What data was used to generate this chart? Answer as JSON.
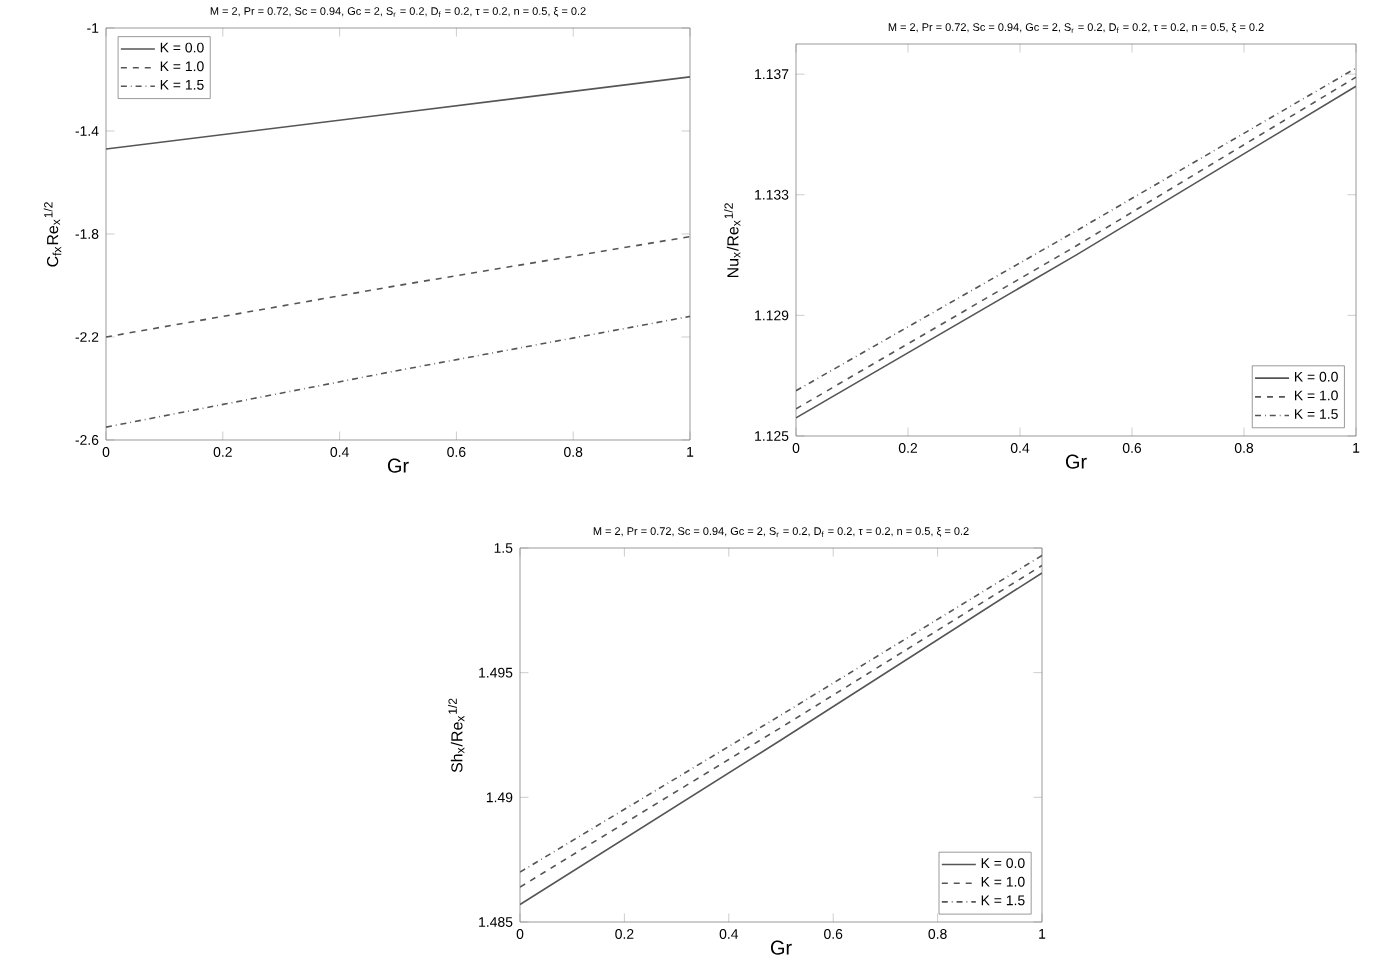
{
  "chart_data": [
    {
      "type": "line",
      "title": "M = 2, Pr = 0.72, Sc = 0.94, Gc = 2, S$_{r}$ = 0.2, D$_{f}$ = 0.2, τ = 0.2, n = 0.5, ξ = 0.2",
      "xlabel": "Gr",
      "ylabel": "C$_{fx}$Re$_{x}$$^{1/2}$",
      "x": [
        0,
        0.5,
        1
      ],
      "xlim": [
        0,
        1
      ],
      "ylim": [
        -2.6,
        -1
      ],
      "xticks": [
        0,
        0.2,
        0.4,
        0.6,
        0.8,
        1
      ],
      "yticks": [
        -2.6,
        -2.2,
        -1.8,
        -1.4,
        -1
      ],
      "legend": "top left",
      "series": [
        {
          "name": "K = 0.0",
          "color": "#555555",
          "line_style": "solid",
          "values": [
            -1.47,
            -1.33,
            -1.19
          ]
        },
        {
          "name": "K = 1.0",
          "color": "#555555",
          "line_style": "dashed",
          "values": [
            -2.2,
            -2.0,
            -1.81
          ]
        },
        {
          "name": "K = 1.5",
          "color": "#555555",
          "line_style": "dashdot",
          "values": [
            -2.55,
            -2.33,
            -2.12
          ]
        }
      ]
    },
    {
      "type": "line",
      "title": "M = 2, Pr = 0.72, Sc = 0.94, Gc = 2, S$_{r}$ = 0.2, D$_{f}$ = 0.2, τ = 0.2, n = 0.5, ξ = 0.2",
      "xlabel": "Gr",
      "ylabel": "Nu$_{x}$/Re$_{x}$$^{1/2}$",
      "x": [
        0,
        0.5,
        1
      ],
      "xlim": [
        0,
        1
      ],
      "ylim": [
        1.125,
        1.138
      ],
      "xticks": [
        0,
        0.2,
        0.4,
        0.6,
        0.8,
        1
      ],
      "yticks": [
        1.125,
        1.129,
        1.133,
        1.137
      ],
      "legend": "bottom right",
      "series": [
        {
          "name": "K = 0.0",
          "color": "#555555",
          "line_style": "solid",
          "values": [
            1.1256,
            1.131,
            1.1366
          ]
        },
        {
          "name": "K = 1.0",
          "color": "#555555",
          "line_style": "dashed",
          "values": [
            1.1259,
            1.1313,
            1.1369
          ]
        },
        {
          "name": "K = 1.5",
          "color": "#555555",
          "line_style": "dashdot",
          "values": [
            1.1265,
            1.1318,
            1.1372
          ]
        }
      ]
    },
    {
      "type": "line",
      "title": "M = 2, Pr = 0.72, Sc = 0.94, Gc = 2, S$_{r}$ = 0.2, D$_{f}$ = 0.2, τ = 0.2, n = 0.5, ξ = 0.2",
      "xlabel": "Gr",
      "ylabel": "Sh$_{x}$/Re$_{x}$$^{1/2}$",
      "x": [
        0,
        0.5,
        1
      ],
      "xlim": [
        0,
        1
      ],
      "ylim": [
        1.485,
        1.5
      ],
      "xticks": [
        0,
        0.2,
        0.4,
        0.6,
        0.8,
        1
      ],
      "yticks": [
        1.485,
        1.49,
        1.495,
        1.5
      ],
      "legend": "bottom right",
      "series": [
        {
          "name": "K = 0.0",
          "color": "#555555",
          "line_style": "solid",
          "values": [
            1.4857,
            1.4923,
            1.499
          ]
        },
        {
          "name": "K = 1.0",
          "color": "#555555",
          "line_style": "dashed",
          "values": [
            1.4864,
            1.4928,
            1.4993
          ]
        },
        {
          "name": "K = 1.5",
          "color": "#555555",
          "line_style": "dashdot",
          "values": [
            1.487,
            1.4933,
            1.4997
          ]
        }
      ]
    }
  ]
}
